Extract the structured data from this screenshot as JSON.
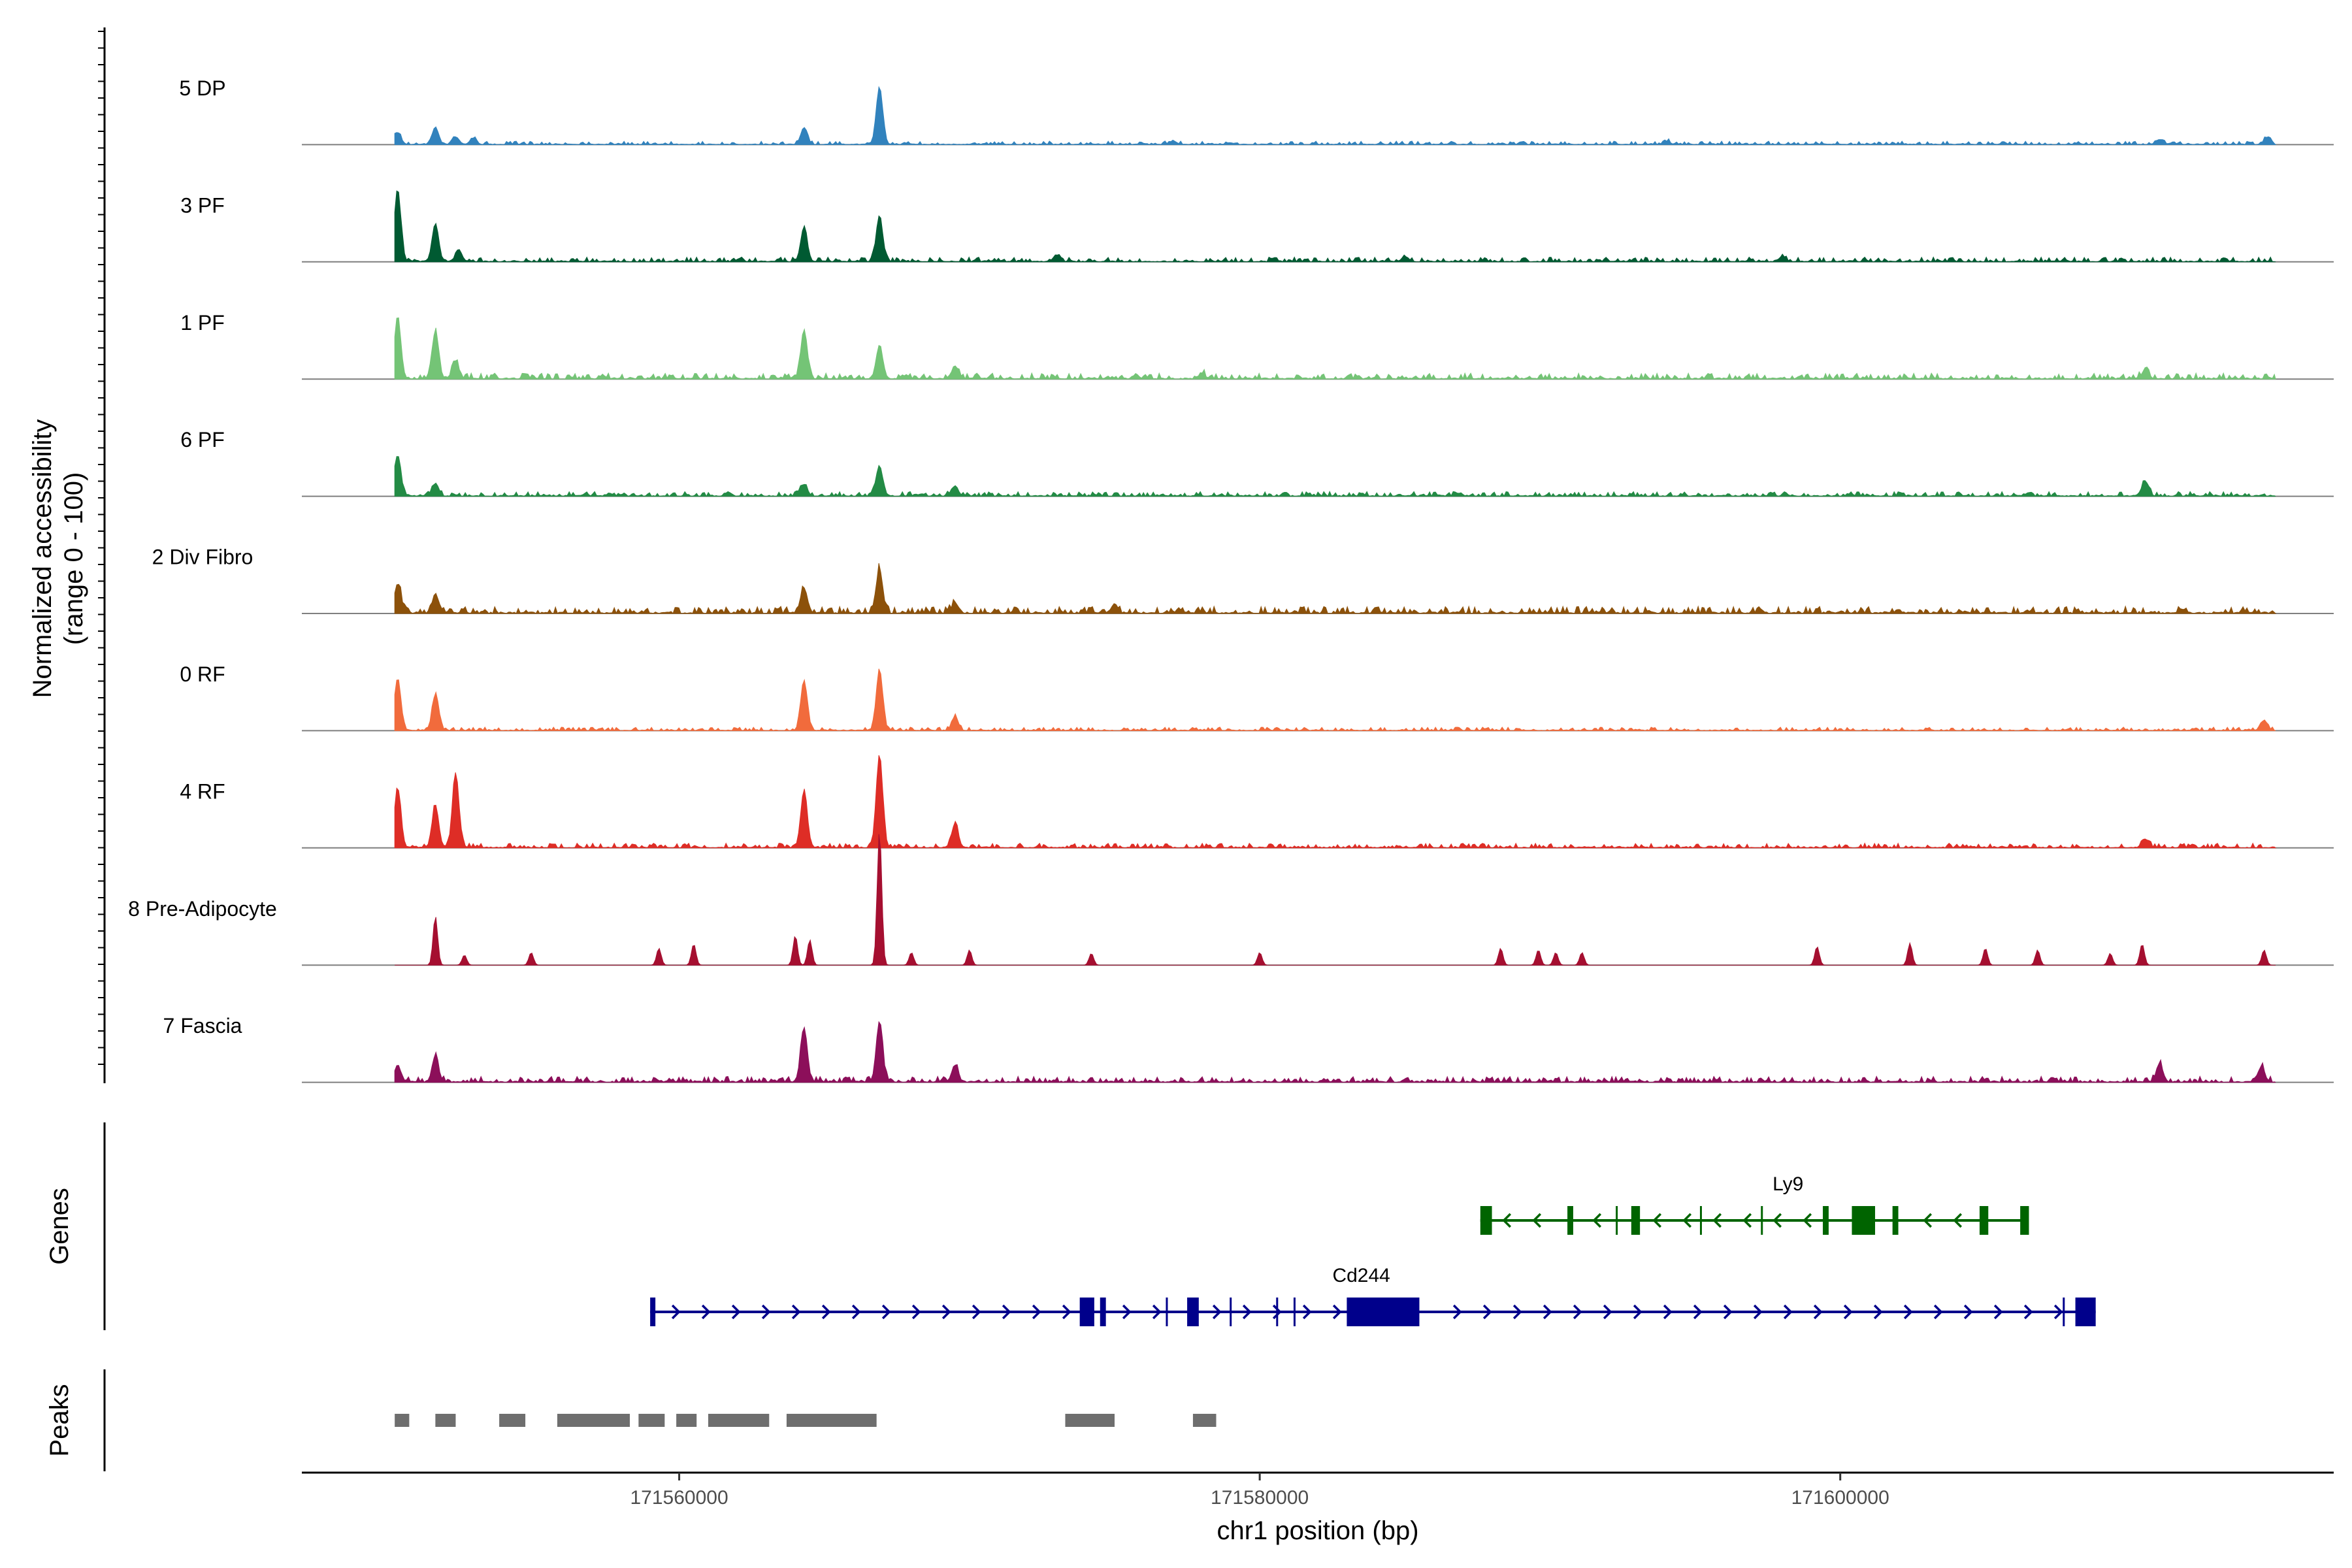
{
  "chart_data": {
    "type": "coverage",
    "chrom": "chr1",
    "xlim": [
      171547000,
      171617000
    ],
    "y_axis_title": [
      "Normalized accessibility",
      "(range 0 - 100)"
    ],
    "x_axis_title": "chr1 position (bp)",
    "x_ticks": [
      {
        "value": 171560000,
        "label": "171560000"
      },
      {
        "value": 171580000,
        "label": "171580000"
      },
      {
        "value": 171600000,
        "label": "171600000"
      }
    ],
    "panel_titles": {
      "genes": "Genes",
      "peaks": "Peaks"
    },
    "coverage_range": [
      0,
      100
    ],
    "signal_extent": [
      171550200,
      171615000
    ],
    "tracks": [
      {
        "name": "5 DP",
        "color": "#3182bd",
        "noise": 3,
        "peaks": [
          [
            171550300,
            14
          ],
          [
            171551600,
            20
          ],
          [
            171552300,
            9
          ],
          [
            171552900,
            7
          ],
          [
            171564300,
            20
          ],
          [
            171566900,
            68
          ],
          [
            171577000,
            4
          ],
          [
            171594000,
            4
          ],
          [
            171611000,
            6
          ],
          [
            171614700,
            8
          ]
        ]
      },
      {
        "name": "3 PF",
        "color": "#005a32",
        "noise": 4,
        "peaks": [
          [
            171550300,
            85
          ],
          [
            171551600,
            45
          ],
          [
            171552400,
            14
          ],
          [
            171564300,
            40
          ],
          [
            171566900,
            55
          ],
          [
            171573000,
            8
          ],
          [
            171585000,
            6
          ],
          [
            171598000,
            6
          ]
        ]
      },
      {
        "name": "1 PF",
        "color": "#74c476",
        "noise": 5,
        "peaks": [
          [
            171550300,
            72
          ],
          [
            171551600,
            55
          ],
          [
            171552300,
            20
          ],
          [
            171564300,
            58
          ],
          [
            171566900,
            40
          ],
          [
            171569500,
            15
          ],
          [
            171578000,
            6
          ],
          [
            171610500,
            10
          ]
        ]
      },
      {
        "name": "6 PF",
        "color": "#238b45",
        "noise": 4,
        "peaks": [
          [
            171550300,
            48
          ],
          [
            171551600,
            15
          ],
          [
            171564300,
            14
          ],
          [
            171566900,
            35
          ],
          [
            171569500,
            12
          ],
          [
            171610500,
            18
          ]
        ]
      },
      {
        "name": "2 Div Fibro",
        "color": "#8c510a",
        "noise": 6,
        "peaks": [
          [
            171550300,
            35
          ],
          [
            171551600,
            22
          ],
          [
            171564300,
            30
          ],
          [
            171566900,
            52
          ],
          [
            171569500,
            12
          ],
          [
            171575000,
            10
          ]
        ]
      },
      {
        "name": "0 RF",
        "color": "#f16b3c",
        "noise": 3,
        "peaks": [
          [
            171550300,
            62
          ],
          [
            171551600,
            42
          ],
          [
            171564300,
            60
          ],
          [
            171566900,
            72
          ],
          [
            171569500,
            16
          ],
          [
            171614600,
            12
          ]
        ]
      },
      {
        "name": "4 RF",
        "color": "#de2d26",
        "noise": 4,
        "peaks": [
          [
            171550300,
            70
          ],
          [
            171551600,
            50
          ],
          [
            171552300,
            88
          ],
          [
            171564300,
            68
          ],
          [
            171566900,
            110
          ],
          [
            171569500,
            28
          ],
          [
            171610500,
            10
          ]
        ]
      },
      {
        "name": "8 Pre-Adipocyte",
        "color": "#a50f30",
        "noise": 0,
        "peaks": [
          [
            171551600,
            58
          ],
          [
            171552600,
            12
          ],
          [
            171554900,
            15
          ],
          [
            171559300,
            20
          ],
          [
            171560500,
            25
          ],
          [
            171564000,
            35
          ],
          [
            171564500,
            30
          ],
          [
            171566900,
            160
          ],
          [
            171568000,
            15
          ],
          [
            171570000,
            18
          ],
          [
            171574200,
            14
          ],
          [
            171580000,
            15
          ],
          [
            171588300,
            20
          ],
          [
            171589600,
            18
          ],
          [
            171590200,
            15
          ],
          [
            171591100,
            15
          ],
          [
            171599200,
            22
          ],
          [
            171602400,
            26
          ],
          [
            171605000,
            20
          ],
          [
            171606800,
            18
          ],
          [
            171609300,
            14
          ],
          [
            171610400,
            25
          ],
          [
            171614600,
            18
          ]
        ]
      },
      {
        "name": "7 Fascia",
        "color": "#8c0f5a",
        "noise": 5,
        "peaks": [
          [
            171550300,
            20
          ],
          [
            171551600,
            30
          ],
          [
            171564300,
            65
          ],
          [
            171566900,
            72
          ],
          [
            171569500,
            20
          ],
          [
            171611000,
            22
          ],
          [
            171614500,
            18
          ]
        ]
      }
    ],
    "genes": [
      {
        "name": "Cd244",
        "strand": "+",
        "start": 171559000,
        "end": 171608800,
        "color": "#00008b",
        "row": 2,
        "label_pos": 171583500,
        "exons": [
          [
            171559000,
            171559150
          ],
          [
            171573800,
            171574300
          ],
          [
            171574500,
            171574700
          ],
          [
            171577500,
            171577900
          ],
          [
            171583000,
            171585500
          ],
          [
            171608100,
            171608800
          ]
        ],
        "marks": [
          171576800,
          171579000,
          171580600,
          171581200,
          171607700
        ]
      },
      {
        "name": "Ly9",
        "strand": "-",
        "start": 171587600,
        "end": 171606500,
        "color": "#006400",
        "row": 1,
        "label_pos": 171598200,
        "exons": [
          [
            171587600,
            171588000
          ],
          [
            171590600,
            171590800
          ],
          [
            171592800,
            171593100
          ],
          [
            171599400,
            171599600
          ],
          [
            171600400,
            171601200
          ],
          [
            171601800,
            171602000
          ],
          [
            171604800,
            171605100
          ],
          [
            171606200,
            171606500
          ]
        ],
        "marks": [
          171592300,
          171595200,
          171597300
        ]
      }
    ],
    "peak_regions": [
      [
        171550200,
        171550700
      ],
      [
        171551600,
        171552300
      ],
      [
        171553800,
        171554700
      ],
      [
        171555800,
        171558300
      ],
      [
        171558600,
        171559500
      ],
      [
        171559900,
        171560600
      ],
      [
        171561000,
        171563100
      ],
      [
        171563700,
        171566800
      ],
      [
        171573300,
        171575000
      ],
      [
        171577700,
        171578500
      ]
    ]
  }
}
